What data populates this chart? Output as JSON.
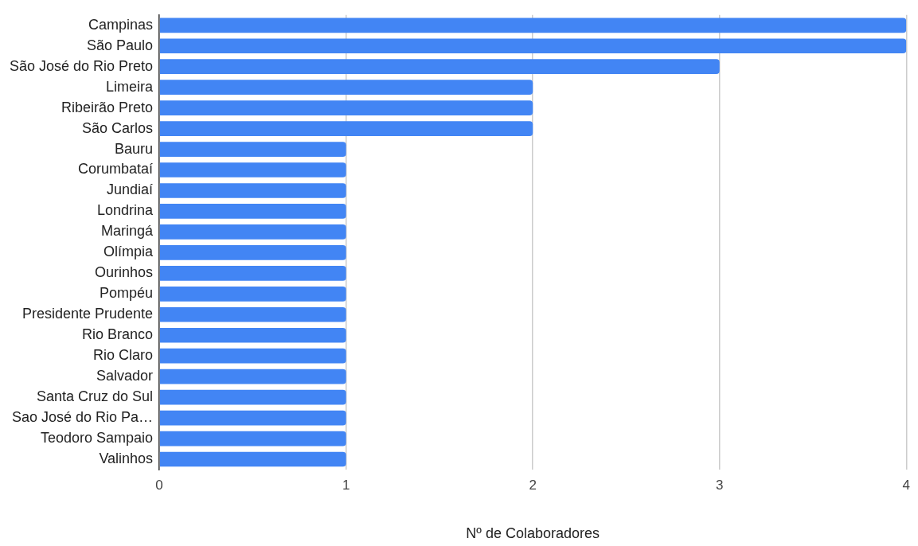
{
  "chart_data": {
    "type": "bar",
    "orientation": "horizontal",
    "xlabel": "Nº de Colaboradores",
    "categories": [
      "Campinas",
      "São Paulo",
      "São José do Rio Preto",
      "Limeira",
      "Ribeirão Preto",
      "São Carlos",
      "Bauru",
      "Corumbataí",
      "Jundiaí",
      "Londrina",
      "Maringá",
      "Olímpia",
      "Ourinhos",
      "Pompéu",
      "Presidente Prudente",
      "Rio Branco",
      "Rio Claro",
      "Salvador",
      "Santa Cruz do Sul",
      "Sao José do Rio Pa…",
      "Teodoro Sampaio",
      "Valinhos"
    ],
    "values": [
      4,
      4,
      3,
      2,
      2,
      2,
      1,
      1,
      1,
      1,
      1,
      1,
      1,
      1,
      1,
      1,
      1,
      1,
      1,
      1,
      1,
      1
    ],
    "color": "#4285f4",
    "xlim": [
      0,
      4
    ],
    "xticks": [
      0,
      1,
      2,
      3,
      4
    ],
    "grid": "x",
    "legend": false
  }
}
